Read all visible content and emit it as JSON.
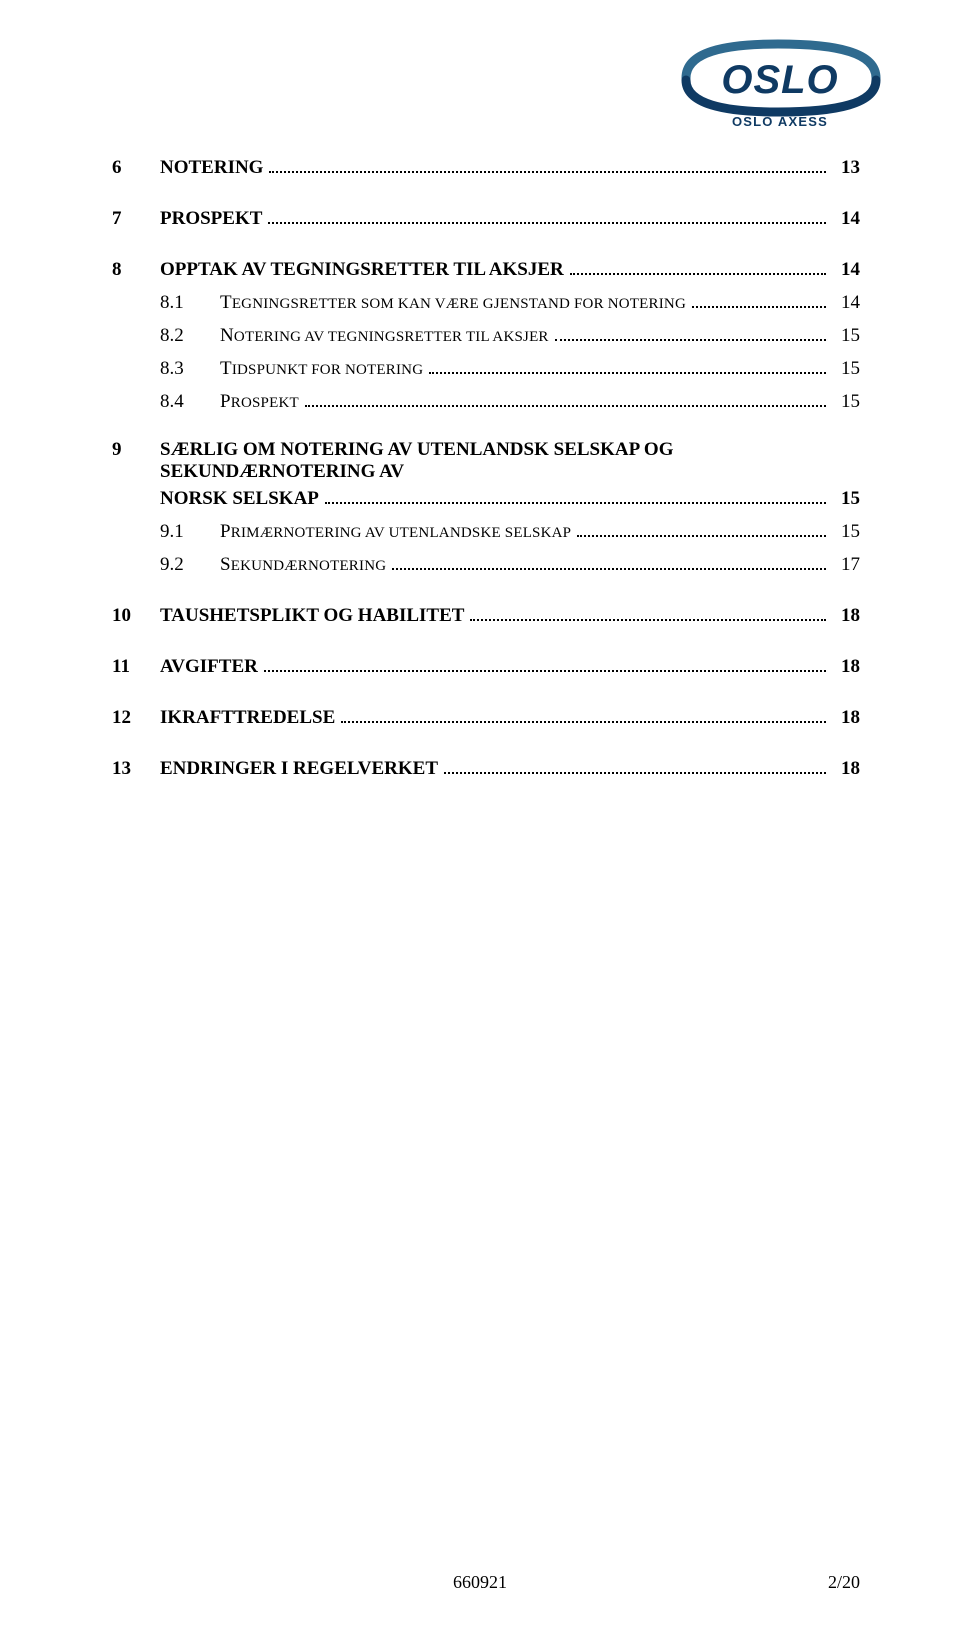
{
  "logo": {
    "brand_main": "OSLO",
    "brand_sub": "OSLO AXESS",
    "color_dark": "#0f3a63",
    "color_accent": "#2f6a8f",
    "arc_color": "#2b6f94"
  },
  "toc": [
    {
      "type": "main",
      "num": "6",
      "title": "NOTERING",
      "page": "13"
    },
    {
      "type": "gap"
    },
    {
      "type": "main",
      "num": "7",
      "title": "PROSPEKT",
      "page": "14"
    },
    {
      "type": "gap"
    },
    {
      "type": "main",
      "num": "8",
      "title": "OPPTAK AV TEGNINGSRETTER TIL AKSJER",
      "page": "14"
    },
    {
      "type": "sub",
      "num": "8.1",
      "title": "Tegningsretter som kan være gjenstand for notering",
      "page": "14"
    },
    {
      "type": "sub",
      "num": "8.2",
      "title": "Notering av tegningsretter til aksjer",
      "page": "15"
    },
    {
      "type": "sub",
      "num": "8.3",
      "title": "Tidspunkt for notering",
      "page": "15"
    },
    {
      "type": "sub",
      "num": "8.4",
      "title": "Prospekt",
      "page": "15"
    },
    {
      "type": "gap"
    },
    {
      "type": "main_ml",
      "num": "9",
      "title_l1": "SÆRLIG OM NOTERING AV UTENLANDSK SELSKAP OG SEKUNDÆRNOTERING AV",
      "title_l2": "NORSK SELSKAP",
      "page": "15"
    },
    {
      "type": "sub",
      "num": "9.1",
      "title": "Primærnotering av utenlandske selskap",
      "page": "15"
    },
    {
      "type": "sub",
      "num": "9.2",
      "title": "Sekundærnotering",
      "page": "17"
    },
    {
      "type": "gap"
    },
    {
      "type": "main",
      "num": "10",
      "title": "TAUSHETSPLIKT OG HABILITET",
      "page": "18"
    },
    {
      "type": "gap"
    },
    {
      "type": "main",
      "num": "11",
      "title": "AVGIFTER",
      "page": "18"
    },
    {
      "type": "gap"
    },
    {
      "type": "main",
      "num": "12",
      "title": "IKRAFTTREDELSE",
      "page": "18"
    },
    {
      "type": "gap"
    },
    {
      "type": "main",
      "num": "13",
      "title": "ENDRINGER I REGELVERKET",
      "page": "18"
    }
  ],
  "footer": {
    "docid": "660921",
    "pagenum": "2/20"
  }
}
